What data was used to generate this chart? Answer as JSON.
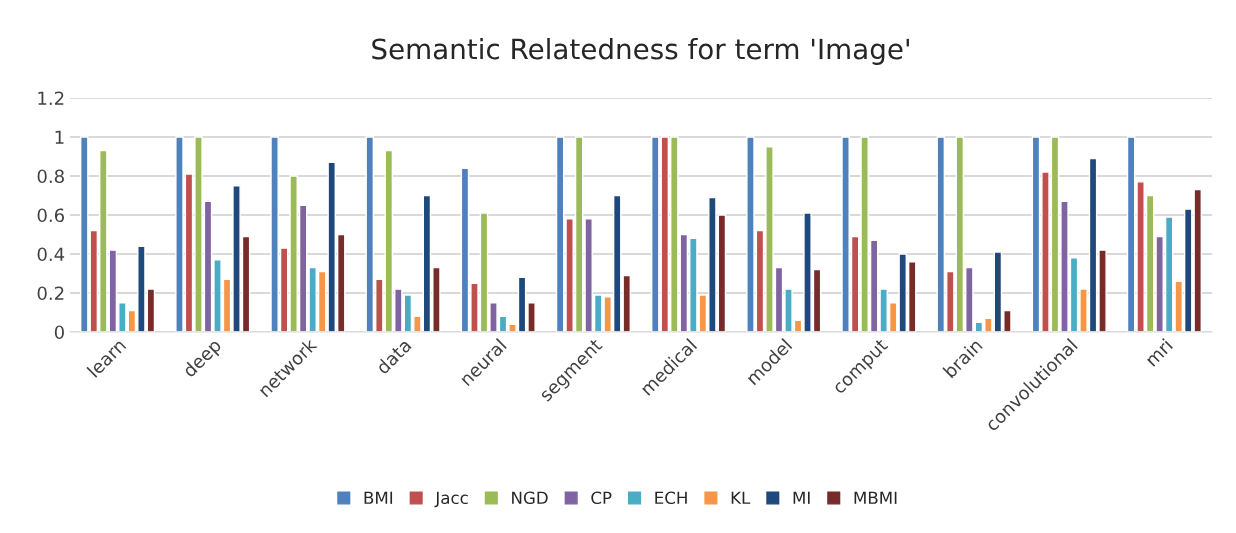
{
  "chart_data": {
    "type": "bar",
    "title": "Semantic Relatedness for term 'Image'",
    "categories": [
      "learn",
      "deep",
      "network",
      "data",
      "neural",
      "segment",
      "medical",
      "model",
      "comput",
      "brain",
      "convolutional",
      "mri"
    ],
    "series": [
      {
        "name": "BMI",
        "color": "#4f81bd",
        "values": [
          1,
          1,
          1,
          1,
          0.84,
          1,
          1,
          1,
          1,
          1,
          1,
          1
        ]
      },
      {
        "name": "Jacc",
        "color": "#c0504d",
        "values": [
          0.52,
          0.81,
          0.43,
          0.27,
          0.25,
          0.58,
          1,
          0.52,
          0.49,
          0.31,
          0.82,
          0.77
        ]
      },
      {
        "name": "NGD",
        "color": "#9bbb59",
        "values": [
          0.93,
          1,
          0.8,
          0.93,
          0.61,
          1,
          1,
          0.95,
          1,
          1,
          1,
          0.7
        ]
      },
      {
        "name": "CP",
        "color": "#8064a2",
        "values": [
          0.42,
          0.67,
          0.65,
          0.22,
          0.15,
          0.58,
          0.5,
          0.33,
          0.47,
          0.33,
          0.67,
          0.49
        ]
      },
      {
        "name": "ECH",
        "color": "#4bacc6",
        "values": [
          0.15,
          0.37,
          0.33,
          0.19,
          0.08,
          0.19,
          0.48,
          0.22,
          0.22,
          0.05,
          0.38,
          0.59
        ]
      },
      {
        "name": "KL",
        "color": "#f79646",
        "values": [
          0.11,
          0.27,
          0.31,
          0.08,
          0.04,
          0.18,
          0.19,
          0.06,
          0.15,
          0.07,
          0.22,
          0.26
        ]
      },
      {
        "name": "MI",
        "color": "#1f497d",
        "values": [
          0.44,
          0.75,
          0.87,
          0.7,
          0.28,
          0.7,
          0.69,
          0.61,
          0.4,
          0.41,
          0.89,
          0.63
        ]
      },
      {
        "name": "MBMI",
        "color": "#772c2a",
        "values": [
          0.22,
          0.49,
          0.5,
          0.33,
          0.15,
          0.29,
          0.6,
          0.32,
          0.36,
          0.11,
          0.42,
          0.73
        ]
      }
    ],
    "ylim": [
      0,
      1.2
    ],
    "yticks": [
      0,
      {
        "value": 0.2,
        "label": "0.2"
      },
      {
        "value": 0.4,
        "label": "0.4"
      },
      {
        "value": 0.6,
        "label": "0.6"
      },
      {
        "value": 0.8,
        "label": "0.8"
      },
      1,
      {
        "value": 1.2,
        "label": "1.2"
      }
    ],
    "grid": "y",
    "legend": "bottom"
  }
}
